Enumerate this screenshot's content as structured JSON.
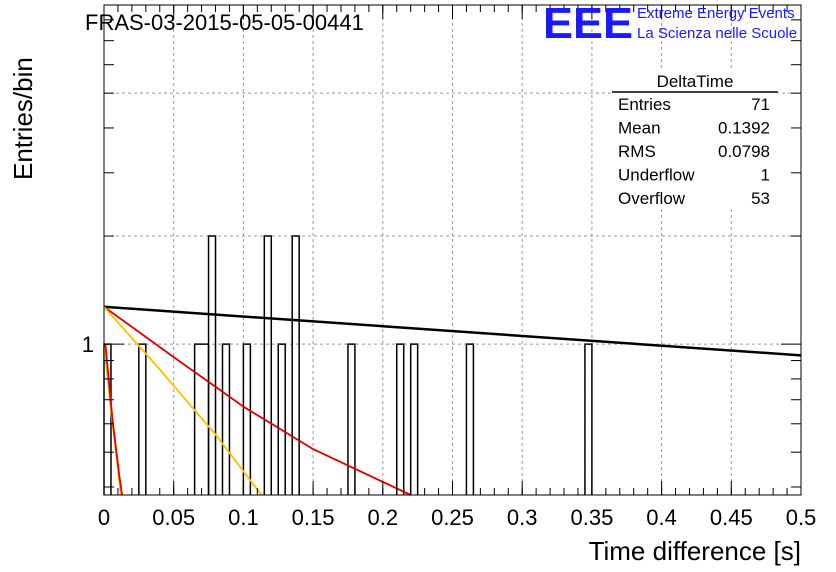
{
  "title": "FRAS-03-2015-05-05-00441",
  "logo": {
    "text": "EEE",
    "line1": "Extreme Energy Events",
    "line2": "La Scienza nelle Scuole",
    "color": "#1a1aff"
  },
  "stats": {
    "name": "DeltaTime",
    "rows": [
      {
        "label": "Entries",
        "value": "71"
      },
      {
        "label": "Mean",
        "value": "0.1392"
      },
      {
        "label": "RMS",
        "value": "0.0798"
      },
      {
        "label": "Underflow",
        "value": "1"
      },
      {
        "label": "Overflow",
        "value": "53"
      }
    ]
  },
  "chart_data": {
    "type": "histogram",
    "xlabel": "Time difference [s]",
    "ylabel": "Entries/bin",
    "xlim": [
      0,
      0.5
    ],
    "ylim": [
      0.38,
      8.8
    ],
    "yscale": "log",
    "grid": true,
    "x_ticks": [
      "0",
      "0.05",
      "0.1",
      "0.15",
      "0.2",
      "0.25",
      "0.3",
      "0.35",
      "0.4",
      "0.45",
      "0.5"
    ],
    "y_tick_labels": [
      "1"
    ],
    "bin_width": 0.005,
    "bins": [
      {
        "x0": 0.0,
        "x1": 0.005,
        "count": 1
      },
      {
        "x0": 0.025,
        "x1": 0.03,
        "count": 1
      },
      {
        "x0": 0.065,
        "x1": 0.075,
        "count": 1
      },
      {
        "x0": 0.075,
        "x1": 0.08,
        "count": 2
      },
      {
        "x0": 0.085,
        "x1": 0.09,
        "count": 1
      },
      {
        "x0": 0.1,
        "x1": 0.105,
        "count": 1
      },
      {
        "x0": 0.115,
        "x1": 0.12,
        "count": 2
      },
      {
        "x0": 0.125,
        "x1": 0.13,
        "count": 1
      },
      {
        "x0": 0.135,
        "x1": 0.14,
        "count": 2
      },
      {
        "x0": 0.175,
        "x1": 0.18,
        "count": 1
      },
      {
        "x0": 0.21,
        "x1": 0.215,
        "count": 1
      },
      {
        "x0": 0.22,
        "x1": 0.225,
        "count": 1
      },
      {
        "x0": 0.26,
        "x1": 0.265,
        "count": 1
      },
      {
        "x0": 0.345,
        "x1": 0.35,
        "count": 1
      }
    ],
    "fits": [
      {
        "color": "#000000",
        "points": [
          [
            0,
            1.27
          ],
          [
            0.5,
            0.93
          ]
        ]
      },
      {
        "color": "#dd0000",
        "points": [
          [
            0,
            1.27
          ],
          [
            0.05,
            0.92
          ],
          [
            0.1,
            0.67
          ],
          [
            0.15,
            0.51
          ],
          [
            0.22,
            0.38
          ]
        ]
      },
      {
        "color": "#ffc000",
        "points": [
          [
            0,
            1.27
          ],
          [
            0.04,
            0.85
          ],
          [
            0.08,
            0.56
          ],
          [
            0.113,
            0.38
          ]
        ]
      },
      {
        "color": "#ffc000",
        "points": [
          [
            0,
            1.0
          ],
          [
            0.005,
            0.65
          ],
          [
            0.01,
            0.45
          ],
          [
            0.012,
            0.38
          ]
        ]
      },
      {
        "color": "#dd0000",
        "points": [
          [
            0.001,
            1.0
          ],
          [
            0.006,
            0.62
          ],
          [
            0.011,
            0.43
          ],
          [
            0.013,
            0.38
          ]
        ]
      }
    ]
  }
}
